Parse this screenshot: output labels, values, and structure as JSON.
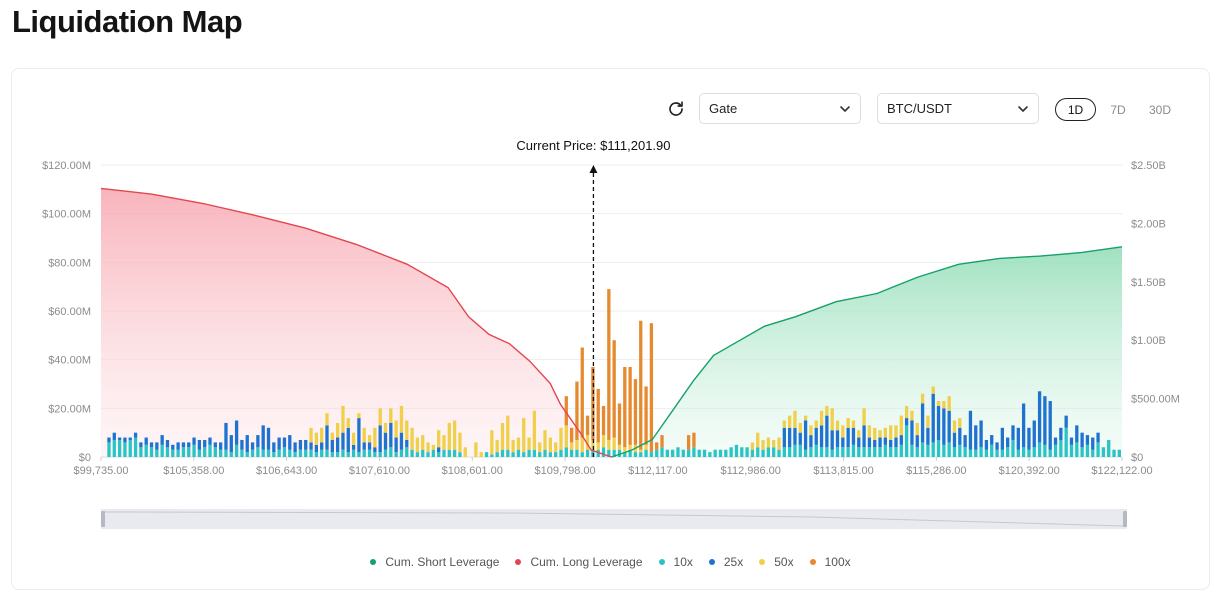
{
  "page": {
    "title": "Liquidation Map"
  },
  "toolbar": {
    "refresh_icon": "refresh-icon",
    "exchange": {
      "value": "Gate"
    },
    "pair": {
      "value": "BTC/USDT"
    },
    "timeframes": [
      {
        "label": "1D",
        "active": true
      },
      {
        "label": "7D",
        "active": false
      },
      {
        "label": "30D",
        "active": false
      }
    ]
  },
  "legend": [
    {
      "label": "Cum. Short Leverage",
      "color": "#16a06a"
    },
    {
      "label": "Cum. Long Leverage",
      "color": "#e2474f"
    },
    {
      "label": "10x",
      "color": "#2bc4c6"
    },
    {
      "label": "25x",
      "color": "#1f72d0"
    },
    {
      "label": "50x",
      "color": "#f0cf4a"
    },
    {
      "label": "100x",
      "color": "#e58a2f"
    }
  ],
  "chart_data": {
    "type": "bar",
    "current_price_label": "Current Price: $111,201.90",
    "current_price": 111201.9,
    "x_tick_labels": [
      "$99,735.00",
      "$105,358.00",
      "$106,643.00",
      "$107,610.00",
      "$108,601.00",
      "$109,798.00",
      "$112,117.00",
      "$112,986.00",
      "$113,815.00",
      "$115,286.00",
      "$120,392.00",
      "$122,122.00"
    ],
    "y_left": {
      "ticks": [
        "$0",
        "$20.00M",
        "$40.00M",
        "$60.00M",
        "$80.00M",
        "$100.00M",
        "$120.00M"
      ],
      "range": [
        0,
        120
      ]
    },
    "y_right": {
      "ticks": [
        "$0",
        "$500.00M",
        "$1.00B",
        "$1.50B",
        "$2.00B",
        "$2.50B"
      ],
      "range": [
        0,
        2.5
      ]
    },
    "grid": true,
    "legend_position": "bottom",
    "series": [
      {
        "name": "10x",
        "values": [
          0,
          6,
          7,
          7,
          6,
          7,
          8,
          4,
          5,
          4,
          3,
          5,
          4,
          3,
          3,
          4,
          4,
          5,
          3,
          4,
          5,
          4,
          3,
          3,
          2,
          5,
          3,
          2,
          3,
          4,
          3,
          3,
          2,
          3,
          4,
          3,
          2,
          3,
          3,
          3,
          2,
          3,
          3,
          2,
          2,
          3,
          2,
          3,
          2,
          3,
          3,
          2,
          2,
          3,
          4,
          2,
          3,
          4,
          3,
          2,
          3,
          2,
          3,
          2,
          3,
          3,
          3,
          2,
          0,
          0,
          0,
          0,
          2,
          1,
          2,
          3,
          3,
          2,
          3,
          2,
          3,
          3,
          2,
          3,
          2,
          2,
          3,
          4,
          3,
          3,
          2,
          3,
          3,
          3,
          4,
          3,
          3,
          3,
          2,
          3,
          2,
          2,
          3,
          2,
          3,
          4,
          3,
          3,
          4,
          3,
          3,
          4,
          3,
          3,
          2,
          3,
          3,
          3,
          4,
          5,
          4,
          4,
          3,
          4,
          3,
          4,
          4,
          3,
          4,
          4,
          5,
          5,
          3,
          4,
          5,
          4,
          4,
          3,
          4,
          4,
          4,
          5,
          4,
          4,
          4,
          4,
          4,
          5,
          4,
          4,
          5,
          13,
          5,
          4,
          6,
          5,
          6,
          7,
          5,
          6,
          4,
          5,
          4,
          3,
          3,
          4,
          3,
          5,
          3,
          3,
          4,
          7,
          3,
          4,
          3,
          4,
          6,
          5,
          3,
          5,
          7,
          12,
          5,
          6,
          4,
          5,
          3,
          6,
          4,
          7,
          3,
          3
        ]
      },
      {
        "name": "25x",
        "values": [
          0,
          2,
          3,
          1,
          2,
          1,
          2,
          2,
          3,
          2,
          3,
          4,
          3,
          2,
          3,
          2,
          2,
          3,
          4,
          3,
          3,
          2,
          3,
          11,
          7,
          10,
          4,
          7,
          3,
          5,
          10,
          9,
          4,
          5,
          4,
          6,
          4,
          4,
          4,
          3,
          3,
          3,
          10,
          5,
          6,
          7,
          10,
          2,
          14,
          3,
          3,
          2,
          11,
          7,
          10,
          6,
          7,
          3,
          0,
          0,
          0,
          0,
          0,
          2,
          0,
          0,
          0,
          0,
          0,
          0,
          0,
          0,
          0,
          0,
          0,
          0,
          0,
          0,
          0,
          0,
          0,
          0,
          0,
          0,
          0,
          0,
          0,
          0,
          0,
          0,
          0,
          0,
          0,
          0,
          0,
          0,
          0,
          0,
          0,
          0,
          0,
          0,
          0,
          0,
          0,
          0,
          0,
          0,
          0,
          0,
          0,
          0,
          0,
          0,
          0,
          0,
          0,
          0,
          0,
          0,
          0,
          0,
          0,
          0,
          0,
          0,
          0,
          0,
          8,
          8,
          7,
          5,
          12,
          5,
          7,
          9,
          13,
          8,
          7,
          4,
          8,
          7,
          4,
          9,
          4,
          3,
          4,
          3,
          3,
          4,
          4,
          3,
          10,
          5,
          16,
          7,
          20,
          14,
          15,
          13,
          6,
          7,
          5,
          16,
          10,
          11,
          4,
          4,
          3,
          9,
          4,
          6,
          9,
          18,
          9,
          11,
          21,
          20,
          20,
          3,
          5,
          5,
          3,
          7,
          6,
          4,
          5,
          4,
          0,
          0,
          0,
          0,
          0,
          0,
          0
        ]
      },
      {
        "name": "50x",
        "values": [
          0,
          0,
          0,
          0,
          0,
          0,
          0,
          0,
          0,
          0,
          0,
          0,
          0,
          0,
          0,
          0,
          0,
          0,
          0,
          0,
          0,
          0,
          0,
          0,
          0,
          0,
          0,
          0,
          0,
          0,
          0,
          0,
          0,
          0,
          0,
          0,
          0,
          0,
          0,
          6,
          5,
          6,
          5,
          3,
          6,
          11,
          4,
          5,
          2,
          6,
          3,
          8,
          7,
          4,
          6,
          7,
          11,
          8,
          9,
          6,
          6,
          4,
          2,
          7,
          6,
          11,
          12,
          8,
          4,
          0,
          6,
          2,
          0,
          10,
          5,
          11,
          14,
          5,
          5,
          14,
          5,
          16,
          4,
          8,
          6,
          4,
          9,
          9,
          3,
          4,
          6,
          6,
          4,
          3,
          5,
          4,
          5,
          2,
          2,
          2,
          3,
          1,
          2,
          0,
          0,
          0,
          0,
          0,
          0,
          0,
          0,
          0,
          0,
          0,
          0,
          0,
          0,
          0,
          0,
          0,
          0,
          0,
          3,
          6,
          4,
          4,
          3,
          5,
          3,
          5,
          7,
          4,
          2,
          4,
          3,
          6,
          4,
          9,
          4,
          5,
          4,
          3,
          3,
          7,
          5,
          5,
          3,
          4,
          6,
          5,
          8,
          5,
          4,
          5,
          4,
          5,
          3,
          2,
          3,
          6,
          5,
          4,
          0,
          0,
          0,
          0,
          0,
          0,
          0,
          0,
          0,
          0,
          0,
          0,
          0,
          0,
          0,
          0,
          0,
          0,
          0,
          0,
          0,
          0,
          0,
          0,
          0,
          0,
          0,
          0,
          0,
          0
        ]
      },
      {
        "name": "100x",
        "values": [
          0,
          0,
          0,
          0,
          0,
          0,
          0,
          0,
          0,
          0,
          0,
          0,
          0,
          0,
          0,
          0,
          0,
          0,
          0,
          0,
          0,
          0,
          0,
          0,
          0,
          0,
          0,
          0,
          0,
          0,
          0,
          0,
          0,
          0,
          0,
          0,
          0,
          0,
          0,
          0,
          0,
          0,
          0,
          0,
          0,
          0,
          0,
          0,
          0,
          0,
          0,
          0,
          0,
          0,
          0,
          0,
          0,
          0,
          0,
          0,
          0,
          0,
          0,
          0,
          0,
          0,
          0,
          0,
          0,
          0,
          0,
          0,
          0,
          0,
          0,
          0,
          0,
          0,
          0,
          0,
          0,
          0,
          0,
          0,
          0,
          0,
          0,
          12,
          6,
          24,
          37,
          8,
          30,
          22,
          12,
          62,
          40,
          17,
          33,
          32,
          27,
          53,
          24,
          53,
          3,
          5,
          0,
          0,
          0,
          0,
          6,
          6,
          0,
          0,
          0,
          0,
          0,
          0,
          0,
          0,
          0,
          0,
          0,
          0,
          0,
          0,
          0,
          0,
          0,
          0,
          0,
          0,
          0,
          0,
          0,
          0,
          0,
          0,
          0,
          0,
          0,
          0,
          0,
          0,
          0,
          0,
          0,
          0,
          0,
          0,
          0,
          0,
          0,
          0,
          0,
          0,
          0,
          0,
          0,
          0,
          0,
          0,
          0,
          0,
          0,
          0,
          0,
          0,
          0,
          0,
          0,
          0,
          0,
          0,
          0,
          0,
          0,
          0,
          0,
          0,
          0,
          0,
          0,
          0,
          0,
          0,
          0,
          0,
          0,
          0
        ]
      },
      {
        "name": "Cum. Long Leverage",
        "axis": "right",
        "points": [
          [
            0,
            2.3
          ],
          [
            0.05,
            2.25
          ],
          [
            0.1,
            2.17
          ],
          [
            0.15,
            2.07
          ],
          [
            0.2,
            1.96
          ],
          [
            0.25,
            1.82
          ],
          [
            0.3,
            1.65
          ],
          [
            0.34,
            1.45
          ],
          [
            0.36,
            1.2
          ],
          [
            0.38,
            1.05
          ],
          [
            0.4,
            0.97
          ],
          [
            0.42,
            0.82
          ],
          [
            0.44,
            0.63
          ],
          [
            0.45,
            0.45
          ],
          [
            0.47,
            0.2
          ],
          [
            0.48,
            0.06
          ],
          [
            0.5,
            0
          ]
        ]
      },
      {
        "name": "Cum. Short Leverage",
        "axis": "right",
        "points": [
          [
            0.5,
            0
          ],
          [
            0.52,
            0.06
          ],
          [
            0.54,
            0.15
          ],
          [
            0.56,
            0.4
          ],
          [
            0.58,
            0.65
          ],
          [
            0.6,
            0.87
          ],
          [
            0.62,
            0.97
          ],
          [
            0.65,
            1.12
          ],
          [
            0.68,
            1.2
          ],
          [
            0.72,
            1.33
          ],
          [
            0.76,
            1.4
          ],
          [
            0.8,
            1.54
          ],
          [
            0.84,
            1.65
          ],
          [
            0.88,
            1.7
          ],
          [
            0.92,
            1.72
          ],
          [
            0.96,
            1.75
          ],
          [
            1,
            1.8
          ]
        ]
      }
    ]
  }
}
